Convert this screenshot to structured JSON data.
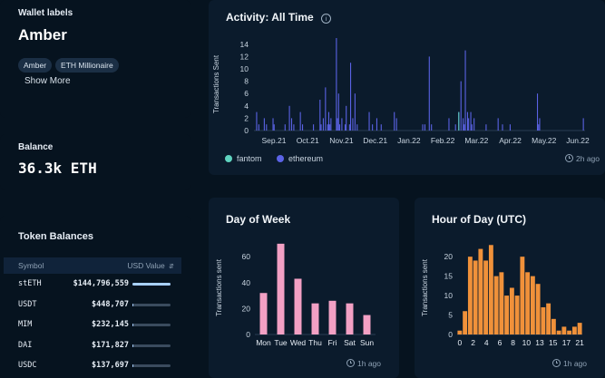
{
  "wallet": {
    "label_heading": "Wallet labels",
    "name": "Amber",
    "tags": [
      "Amber",
      "ETH Millionaire"
    ],
    "show_more": "Show More"
  },
  "balance": {
    "heading": "Balance",
    "value": "36.3k ETH"
  },
  "tokens": {
    "heading": "Token Balances",
    "col_symbol": "Symbol",
    "col_value": "USD Value",
    "rows": [
      {
        "symbol": "stETH",
        "value": "$144,796,559",
        "fraction": 1.0
      },
      {
        "symbol": "USDT",
        "value": "$448,707",
        "fraction": 0.01
      },
      {
        "symbol": "MIM",
        "value": "$232,145",
        "fraction": 0.006
      },
      {
        "symbol": "DAI",
        "value": "$171,827",
        "fraction": 0.004
      },
      {
        "symbol": "USDC",
        "value": "$137,697",
        "fraction": 0.003
      }
    ]
  },
  "activity": {
    "title": "Activity: All Time",
    "updated": "2h ago",
    "legend": [
      {
        "name": "fantom",
        "color": "#5fd3bf"
      },
      {
        "name": "ethereum",
        "color": "#5b63e6"
      }
    ]
  },
  "day_of_week": {
    "title": "Day of Week",
    "updated": "1h ago"
  },
  "hour_of_day": {
    "title": "Hour of Day (UTC)",
    "updated": "1h ago"
  },
  "chart_data": [
    {
      "type": "bar",
      "title": "Activity: All Time",
      "ylabel": "Transactions Sent",
      "ylim": [
        0,
        15
      ],
      "yticks": [
        0,
        2,
        4,
        6,
        8,
        10,
        12,
        14
      ],
      "x_labels": [
        "Sep.21",
        "Oct.21",
        "Nov.21",
        "Dec.21",
        "Jan.22",
        "Feb.22",
        "Mar.22",
        "Apr.22",
        "May.22",
        "Jun.22"
      ],
      "series": [
        {
          "name": "ethereum",
          "color": "#5b63e6",
          "values": [
            0,
            0,
            3,
            0,
            1,
            0,
            0,
            0,
            0,
            2,
            0,
            1,
            0,
            0,
            0,
            0,
            0,
            2,
            1,
            0,
            0,
            0,
            0,
            0,
            0,
            0,
            0,
            0,
            1,
            0,
            0,
            0,
            4,
            0,
            2,
            0,
            1,
            0,
            0,
            0,
            0,
            0,
            3,
            0,
            1,
            0,
            0,
            0,
            0,
            0,
            0,
            0,
            0,
            0,
            1,
            0,
            0,
            0,
            0,
            0,
            5,
            1,
            0,
            2,
            0,
            7,
            0,
            1,
            3,
            1,
            2,
            0,
            0,
            0,
            0,
            15,
            2,
            6,
            1,
            0,
            2,
            0,
            0,
            1,
            4,
            0,
            0,
            1,
            11,
            0,
            2,
            0,
            6,
            0,
            1,
            0,
            0,
            0,
            0,
            0,
            0,
            0,
            0,
            0,
            0,
            3,
            0,
            0,
            1,
            0,
            0,
            0,
            2,
            0,
            0,
            0,
            1,
            0,
            0,
            0,
            0,
            0,
            0,
            0,
            0,
            0,
            0,
            0,
            3,
            0,
            2,
            0,
            0,
            0,
            0,
            0,
            0,
            0,
            0,
            0,
            0,
            0,
            0,
            0,
            0,
            0,
            0,
            0,
            0,
            0,
            0,
            0,
            0,
            0,
            1,
            0,
            1,
            0,
            0,
            0,
            12,
            0,
            1,
            0,
            0,
            0,
            0,
            0,
            0,
            0,
            0,
            0,
            0,
            0,
            0,
            0,
            0,
            0,
            2,
            0,
            0,
            0,
            0,
            0,
            1,
            0,
            0,
            3,
            0,
            8,
            0,
            2,
            1,
            13,
            0,
            3,
            2,
            0,
            3,
            1,
            0,
            2,
            0,
            0,
            0,
            0,
            0,
            0,
            0,
            0,
            0,
            0,
            1,
            0,
            0,
            0,
            0,
            0,
            0,
            0,
            0,
            0,
            0,
            2,
            0,
            0,
            0,
            1,
            0,
            0,
            0,
            0,
            0,
            0,
            1,
            0,
            0,
            0,
            0,
            0,
            0,
            0,
            0,
            0,
            0,
            0,
            0,
            0,
            0,
            0,
            0,
            0,
            0,
            0,
            0,
            0,
            0,
            0,
            0,
            6,
            1,
            2,
            0,
            0,
            0,
            0,
            0,
            0,
            0,
            0,
            0,
            0,
            0,
            0,
            0,
            0,
            0,
            0,
            0,
            0,
            0,
            0,
            0,
            0,
            0,
            0,
            0,
            0,
            0,
            0,
            0,
            0,
            0,
            0,
            0,
            0,
            0,
            0,
            0,
            0,
            0,
            2,
            0
          ]
        },
        {
          "name": "fantom",
          "color": "#5fd3bf",
          "values": [
            0,
            0,
            0,
            0,
            0,
            0,
            0,
            0,
            0,
            0,
            0,
            0,
            0,
            0,
            0,
            0,
            0,
            0,
            0,
            0,
            0,
            0,
            0,
            0,
            0,
            0,
            0,
            0,
            0,
            0,
            0,
            0,
            0,
            0,
            0,
            0,
            0,
            0,
            0,
            0,
            0,
            0,
            0,
            0,
            0,
            0,
            0,
            0,
            0,
            0,
            0,
            0,
            0,
            0,
            0,
            0,
            0,
            0,
            0,
            0,
            0,
            0,
            0,
            0,
            0,
            0,
            0,
            0,
            0,
            0,
            0,
            0,
            0,
            0,
            0,
            0,
            0,
            0,
            0,
            0,
            0,
            0,
            0,
            0,
            0,
            0,
            0,
            0,
            0,
            0,
            0,
            0,
            0,
            0,
            0,
            0,
            0,
            0,
            0,
            0,
            0,
            0,
            0,
            0,
            0,
            0,
            0,
            0,
            0,
            0,
            0,
            0,
            0,
            0,
            0,
            0,
            0,
            0,
            0,
            0,
            0,
            0,
            0,
            0,
            0,
            0,
            0,
            0,
            0,
            0,
            0,
            0,
            0,
            0,
            0,
            0,
            0,
            0,
            0,
            0,
            0,
            0,
            0,
            0,
            0,
            0,
            0,
            0,
            0,
            0,
            0,
            0,
            0,
            0,
            0,
            0,
            0,
            0,
            0,
            0,
            0,
            0,
            0,
            0,
            0,
            0,
            0,
            0,
            0,
            0,
            0,
            0,
            0,
            0,
            0,
            0,
            0,
            0,
            0,
            0,
            0,
            0,
            0,
            0,
            0,
            0,
            0,
            3,
            0,
            0,
            0,
            0,
            0,
            0,
            0,
            0,
            0,
            0,
            0,
            0,
            0,
            0,
            0,
            0,
            0,
            0,
            0,
            0,
            0,
            0,
            0,
            0,
            0,
            0,
            0,
            0,
            0,
            0,
            0,
            0,
            0,
            0,
            0,
            0,
            0,
            0,
            0,
            0,
            0,
            0,
            0,
            0,
            0,
            0,
            0,
            0,
            0,
            0,
            0,
            0,
            0,
            0,
            0,
            0,
            0,
            0,
            0,
            0,
            0,
            0,
            0,
            0,
            0,
            0,
            0,
            0,
            0,
            0,
            0,
            0,
            0,
            0,
            0,
            0,
            0,
            0,
            0,
            0,
            0,
            0,
            0,
            0,
            0,
            0,
            0,
            0,
            0,
            0,
            0,
            0,
            0,
            0,
            0,
            0,
            0,
            0,
            0,
            0,
            0,
            0,
            0,
            0,
            0,
            0,
            0,
            0,
            0,
            0,
            0
          ]
        }
      ]
    },
    {
      "type": "bar",
      "title": "Day of Week",
      "ylabel": "Transactions sent",
      "ylim": [
        0,
        72
      ],
      "yticks": [
        0,
        20,
        40,
        60
      ],
      "categories": [
        "Mon",
        "Tue",
        "Wed",
        "Thu",
        "Fri",
        "Sat",
        "Sun"
      ],
      "values": [
        32,
        70,
        43,
        24,
        26,
        24,
        15
      ],
      "color": "#f2a0c4"
    },
    {
      "type": "bar",
      "title": "Hour of Day (UTC)",
      "ylabel": "Transactions sent",
      "ylim": [
        0,
        24
      ],
      "yticks": [
        0,
        5,
        10,
        15,
        20
      ],
      "categories": [
        "0",
        "1",
        "2",
        "3",
        "4",
        "5",
        "6",
        "7",
        "8",
        "9",
        "10",
        "11",
        "12",
        "13",
        "14",
        "15",
        "16",
        "17",
        "18",
        "19",
        "20",
        "21",
        "22",
        "23"
      ],
      "tick_labels": [
        "0",
        "2",
        "4",
        "6",
        "8",
        "10",
        "13",
        "15",
        "17",
        "21"
      ],
      "values": [
        1,
        6,
        20,
        19,
        22,
        19,
        23,
        15,
        16,
        10,
        12,
        10,
        20,
        16,
        15,
        13,
        7,
        8,
        4,
        1,
        2,
        1,
        2,
        3
      ],
      "color": "#f0913a"
    }
  ]
}
